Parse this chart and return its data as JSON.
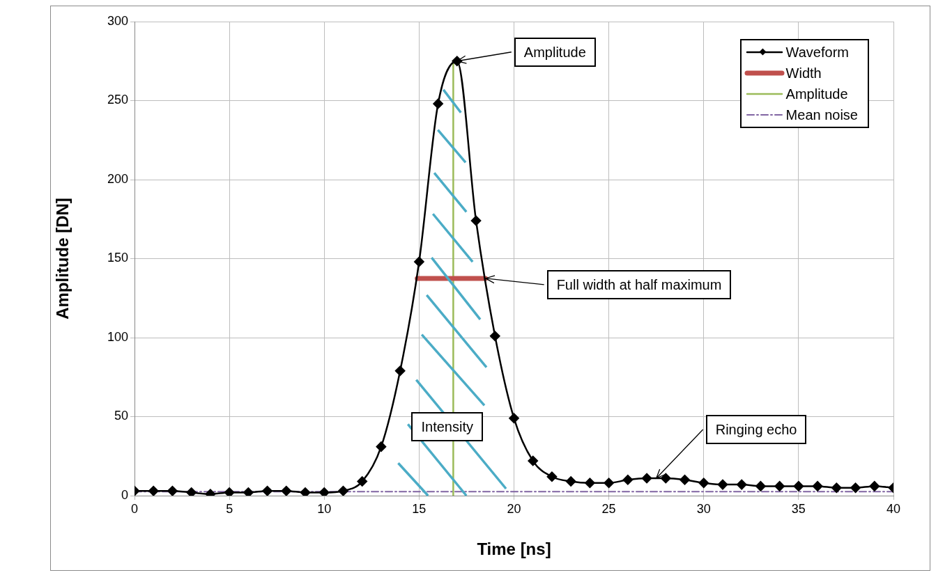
{
  "chart_data": {
    "type": "line",
    "xlabel": "Time [ns]",
    "ylabel": "Amplitude [DN]",
    "xlim": [
      0,
      40
    ],
    "xticks": [
      0,
      5,
      10,
      15,
      20,
      25,
      30,
      35,
      40
    ],
    "ylim": [
      0,
      300
    ],
    "yticks": [
      0,
      50,
      100,
      150,
      200,
      250,
      300
    ],
    "grid": true,
    "legend": "top right",
    "series": [
      {
        "name": "Waveform",
        "color": "#000000",
        "marker": "diamond",
        "line_style": "solid",
        "x": [
          0,
          1,
          2,
          3,
          4,
          5,
          6,
          7,
          8,
          9,
          10,
          11,
          12,
          13,
          14,
          15,
          16,
          17,
          18,
          19,
          20,
          21,
          22,
          23,
          24,
          25,
          26,
          27,
          28,
          29,
          30,
          31,
          32,
          33,
          34,
          35,
          36,
          37,
          38,
          39,
          40
        ],
        "values": [
          3,
          3,
          3,
          2,
          1,
          2,
          2,
          3,
          3,
          2,
          2,
          3,
          9,
          31,
          79,
          148,
          248,
          275,
          174,
          101,
          49,
          22,
          12,
          9,
          8,
          8,
          10,
          11,
          11,
          10,
          8,
          7,
          7,
          6,
          6,
          6,
          6,
          5,
          5,
          6,
          5
        ]
      },
      {
        "name": "Width",
        "color": "#c0504d",
        "marker": "none",
        "line_style": "solid",
        "x": [
          14.9,
          18.5
        ],
        "values": [
          137.5,
          137.5
        ]
      },
      {
        "name": "Amplitude",
        "color": "#9bbb59",
        "marker": "none",
        "line_style": "solid",
        "x": [
          16.8,
          16.8
        ],
        "values": [
          0,
          275
        ]
      },
      {
        "name": "Mean noise",
        "color": "#8064a2",
        "marker": "none",
        "line_style": "dashed",
        "x": [
          0,
          40
        ],
        "values": [
          2.5,
          2.5
        ]
      }
    ],
    "annotations": [
      {
        "text": "Amplitude",
        "x": 17,
        "y": 275
      },
      {
        "text": "Full width at half maximum",
        "x": 18.5,
        "y": 137.5
      },
      "Intensity",
      {
        "text": "Ringing echo",
        "x": 27.5,
        "y": 11
      }
    ]
  }
}
